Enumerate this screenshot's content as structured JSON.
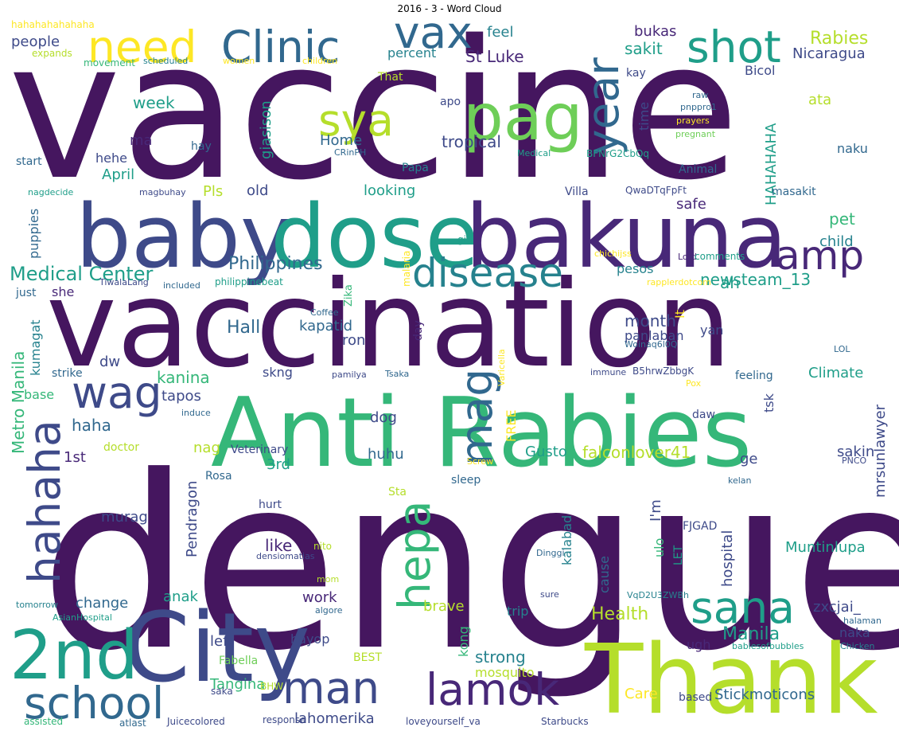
{
  "title": "2016 - 3 - Word Cloud",
  "palette": {
    "p1": "#45165f",
    "p2": "#482878",
    "p3": "#3e4a89",
    "p4": "#31688e",
    "p5": "#26828e",
    "p6": "#1f9e89",
    "p7": "#35b779",
    "p8": "#6ece58",
    "p9": "#b5de2b",
    "p10": "#fde725"
  },
  "words": [
    {
      "text": "vaccine",
      "color": "p1"
    },
    {
      "text": "dengue",
      "color": "p1"
    },
    {
      "text": "vaccination",
      "color": "p1"
    },
    {
      "text": "Anti",
      "color": "p7"
    },
    {
      "text": "Rabies",
      "color": "p7"
    },
    {
      "text": "Thank",
      "color": "p9"
    },
    {
      "text": "City",
      "color": "p3"
    },
    {
      "text": "baby",
      "color": "p3"
    },
    {
      "text": "dose",
      "color": "p6"
    },
    {
      "text": "bakuna",
      "color": "p2"
    },
    {
      "text": "2nd",
      "color": "p6"
    },
    {
      "text": "pag",
      "color": "p8"
    },
    {
      "text": "Clinic",
      "color": "p4"
    },
    {
      "text": "need",
      "color": "p10"
    },
    {
      "text": "vax",
      "color": "p4"
    },
    {
      "text": "shot",
      "color": "p6"
    },
    {
      "text": "sya",
      "color": "p9"
    },
    {
      "text": "year",
      "color": "p4"
    },
    {
      "text": "amp",
      "color": "p2"
    },
    {
      "text": "disease",
      "color": "p5"
    },
    {
      "text": "mag",
      "color": "p4"
    },
    {
      "text": "wag",
      "color": "p3"
    },
    {
      "text": "hahaha",
      "color": "p3"
    },
    {
      "text": "hepa",
      "color": "p7"
    },
    {
      "text": "sana",
      "color": "p6"
    },
    {
      "text": "school",
      "color": "p4"
    },
    {
      "text": "man",
      "color": "p3"
    },
    {
      "text": "lamok",
      "color": "p2"
    },
    {
      "text": "Medical Center",
      "color": "p6"
    },
    {
      "text": "Philippines",
      "color": "p4"
    },
    {
      "text": "newsteam_13",
      "color": "p6"
    },
    {
      "text": "Rabies",
      "color": "p9"
    },
    {
      "text": "Nicaragua",
      "color": "p3"
    },
    {
      "text": "St Luke",
      "color": "p2"
    },
    {
      "text": "sakit",
      "color": "p6"
    },
    {
      "text": "bukas",
      "color": "p2"
    },
    {
      "text": "feel",
      "color": "p5"
    },
    {
      "text": "percent",
      "color": "p5"
    },
    {
      "text": "people",
      "color": "p3"
    },
    {
      "text": "week",
      "color": "p6"
    },
    {
      "text": "tropical",
      "color": "p3"
    },
    {
      "text": "Home",
      "color": "p4"
    },
    {
      "text": "giasison",
      "color": "p6"
    },
    {
      "text": "HAHAHAHA",
      "color": "p6"
    },
    {
      "text": "time",
      "color": "p3"
    },
    {
      "text": "ata",
      "color": "p9"
    },
    {
      "text": "naku",
      "color": "p4"
    },
    {
      "text": "Bicol",
      "color": "p3"
    },
    {
      "text": "kay",
      "color": "p3"
    },
    {
      "text": "apo",
      "color": "p3"
    },
    {
      "text": "That",
      "color": "p9"
    },
    {
      "text": "ma",
      "color": "p2"
    },
    {
      "text": "hehe",
      "color": "p3"
    },
    {
      "text": "April",
      "color": "p6"
    },
    {
      "text": "hay",
      "color": "p4"
    },
    {
      "text": "start",
      "color": "p4"
    },
    {
      "text": "Papa",
      "color": "p5"
    },
    {
      "text": "Animal",
      "color": "p4"
    },
    {
      "text": "looking",
      "color": "p6"
    },
    {
      "text": "Villa",
      "color": "p3"
    },
    {
      "text": "old",
      "color": "p3"
    },
    {
      "text": "Pls",
      "color": "p9"
    },
    {
      "text": "safe",
      "color": "p2"
    },
    {
      "text": "pet",
      "color": "p7"
    },
    {
      "text": "masakit",
      "color": "p4"
    },
    {
      "text": "child",
      "color": "p5"
    },
    {
      "text": "puppies",
      "color": "p4"
    },
    {
      "text": "ah",
      "color": "p6"
    },
    {
      "text": "pesos",
      "color": "p5"
    },
    {
      "text": "she",
      "color": "p2"
    },
    {
      "text": "just",
      "color": "p4"
    },
    {
      "text": "Metro Manila",
      "color": "p7"
    },
    {
      "text": "kumagat",
      "color": "p5"
    },
    {
      "text": "Hall",
      "color": "p4"
    },
    {
      "text": "kapatid",
      "color": "p4"
    },
    {
      "text": "ron",
      "color": "p3"
    },
    {
      "text": "month",
      "color": "p3"
    },
    {
      "text": "panlaban",
      "color": "p3"
    },
    {
      "text": "yan",
      "color": "p3"
    },
    {
      "text": "It",
      "color": "p10"
    },
    {
      "text": "dw",
      "color": "p3"
    },
    {
      "text": "strike",
      "color": "p4"
    },
    {
      "text": "kanina",
      "color": "p7"
    },
    {
      "text": "skng",
      "color": "p3"
    },
    {
      "text": "Climate",
      "color": "p6"
    },
    {
      "text": "feeling",
      "color": "p4"
    },
    {
      "text": "base",
      "color": "p7"
    },
    {
      "text": "tapos",
      "color": "p3"
    },
    {
      "text": "haha",
      "color": "p4"
    },
    {
      "text": "dog",
      "color": "p3"
    },
    {
      "text": "FREE",
      "color": "p10"
    },
    {
      "text": "tsk",
      "color": "p3"
    },
    {
      "text": "mrsunlawyer",
      "color": "p3"
    },
    {
      "text": "daw",
      "color": "p3"
    },
    {
      "text": "1st",
      "color": "p2"
    },
    {
      "text": "nag",
      "color": "p9"
    },
    {
      "text": "Veterinary",
      "color": "p3"
    },
    {
      "text": "doctor",
      "color": "p9"
    },
    {
      "text": "3rd",
      "color": "p6"
    },
    {
      "text": "Gusto",
      "color": "p6"
    },
    {
      "text": "falconlover41",
      "color": "p9"
    },
    {
      "text": "huhu",
      "color": "p4"
    },
    {
      "text": "ge",
      "color": "p3"
    },
    {
      "text": "sakin",
      "color": "p3"
    },
    {
      "text": "Pendragon",
      "color": "p3"
    },
    {
      "text": "murag",
      "color": "p3"
    },
    {
      "text": "Rosa",
      "color": "p4"
    },
    {
      "text": "I'm",
      "color": "p3"
    },
    {
      "text": "hospital",
      "color": "p3"
    },
    {
      "text": "sleep",
      "color": "p4"
    },
    {
      "text": "hurt",
      "color": "p3"
    },
    {
      "text": "Sta",
      "color": "p9"
    },
    {
      "text": "like",
      "color": "p2"
    },
    {
      "text": "kalabad",
      "color": "p5"
    },
    {
      "text": "ulo",
      "color": "p7"
    },
    {
      "text": "LET",
      "color": "p6"
    },
    {
      "text": "FJGAD",
      "color": "p3"
    },
    {
      "text": "Muntinlupa",
      "color": "p6"
    },
    {
      "text": "cause",
      "color": "p4"
    },
    {
      "text": "anak",
      "color": "p6"
    },
    {
      "text": "change",
      "color": "p4"
    },
    {
      "text": "work",
      "color": "p2"
    },
    {
      "text": "brave",
      "color": "p9"
    },
    {
      "text": "Health",
      "color": "p9"
    },
    {
      "text": "zxcjai_",
      "color": "p3"
    },
    {
      "text": "trip",
      "color": "p5"
    },
    {
      "text": "naka",
      "color": "p3"
    },
    {
      "text": "Manila",
      "color": "p6"
    },
    {
      "text": "kong",
      "color": "p7"
    },
    {
      "text": "left",
      "color": "p3"
    },
    {
      "text": "hayop",
      "color": "p3"
    },
    {
      "text": "strong",
      "color": "p5"
    },
    {
      "text": "BEST",
      "color": "p9"
    },
    {
      "text": "ugh",
      "color": "p2"
    },
    {
      "text": "mosquito",
      "color": "p9"
    },
    {
      "text": "Fabella",
      "color": "p8"
    },
    {
      "text": "Tangina",
      "color": "p7"
    },
    {
      "text": "lahomerika",
      "color": "p3"
    },
    {
      "text": "Care",
      "color": "p10"
    },
    {
      "text": "Stickmoticons",
      "color": "p4"
    },
    {
      "text": "based",
      "color": "p3"
    },
    {
      "text": "Starbucks",
      "color": "p3"
    },
    {
      "text": "loveyourself_va",
      "color": "p3"
    },
    {
      "text": "response",
      "color": "p3"
    },
    {
      "text": "Juicecolored",
      "color": "p3"
    },
    {
      "text": "atlast",
      "color": "p4"
    },
    {
      "text": "assisted",
      "color": "p7"
    },
    {
      "text": "saka",
      "color": "p3"
    },
    {
      "text": "BHW",
      "color": "p9"
    },
    {
      "text": "hahahahahahaha",
      "color": "p10"
    },
    {
      "text": "expands",
      "color": "p9"
    },
    {
      "text": "movement",
      "color": "p7"
    },
    {
      "text": "scheduled",
      "color": "p5"
    },
    {
      "text": "women",
      "color": "p10"
    },
    {
      "text": "children",
      "color": "p10"
    },
    {
      "text": "raw",
      "color": "p4"
    },
    {
      "text": "pnppro1",
      "color": "p4"
    },
    {
      "text": "prayers",
      "color": "p10"
    },
    {
      "text": "pregnant",
      "color": "p8"
    },
    {
      "text": "CRinPH",
      "color": "p4"
    },
    {
      "text": "Medical",
      "color": "p6"
    },
    {
      "text": "BFNrG2CbQq",
      "color": "p6"
    },
    {
      "text": "nagdecide",
      "color": "p6"
    },
    {
      "text": "magbuhay",
      "color": "p3"
    },
    {
      "text": "QwaDTqFpFt",
      "color": "p3"
    },
    {
      "text": "gi",
      "color": "p6"
    },
    {
      "text": "chichijss",
      "color": "p10"
    },
    {
      "text": "Lord",
      "color": "p2"
    },
    {
      "text": "comments",
      "color": "p6"
    },
    {
      "text": "TiwalaLang",
      "color": "p3"
    },
    {
      "text": "included",
      "color": "p4"
    },
    {
      "text": "philippinebeat",
      "color": "p6"
    },
    {
      "text": "rapplerdotcom",
      "color": "p10"
    },
    {
      "text": "malaria",
      "color": "p10"
    },
    {
      "text": "Coffee",
      "color": "p4"
    },
    {
      "text": "Zika",
      "color": "p7"
    },
    {
      "text": "day",
      "color": "p2"
    },
    {
      "text": "Woinaq6l0Q",
      "color": "p4"
    },
    {
      "text": "LOL",
      "color": "p4"
    },
    {
      "text": "pamilya",
      "color": "p3"
    },
    {
      "text": "Tsaka",
      "color": "p4"
    },
    {
      "text": "Varicella",
      "color": "p10"
    },
    {
      "text": "immune",
      "color": "p3"
    },
    {
      "text": "B5hrwZbbgK",
      "color": "p3"
    },
    {
      "text": "induce",
      "color": "p4"
    },
    {
      "text": "Pox",
      "color": "p10"
    },
    {
      "text": "Screw",
      "color": "p10"
    },
    {
      "text": "PNCO",
      "color": "p3"
    },
    {
      "text": "kelan",
      "color": "p4"
    },
    {
      "text": "nito",
      "color": "p9"
    },
    {
      "text": "densiomatias",
      "color": "p3"
    },
    {
      "text": "Dinggi",
      "color": "p4"
    },
    {
      "text": "mom",
      "color": "p9"
    },
    {
      "text": "sure",
      "color": "p3"
    },
    {
      "text": "VqD2U3ZWBh",
      "color": "p5"
    },
    {
      "text": "tomorrow",
      "color": "p5"
    },
    {
      "text": "algore",
      "color": "p4"
    },
    {
      "text": "AsianHospital",
      "color": "p6"
    },
    {
      "text": "halaman",
      "color": "p4"
    },
    {
      "text": "babiesofbubbles",
      "color": "p6"
    },
    {
      "text": "Chicken",
      "color": "p5"
    }
  ]
}
